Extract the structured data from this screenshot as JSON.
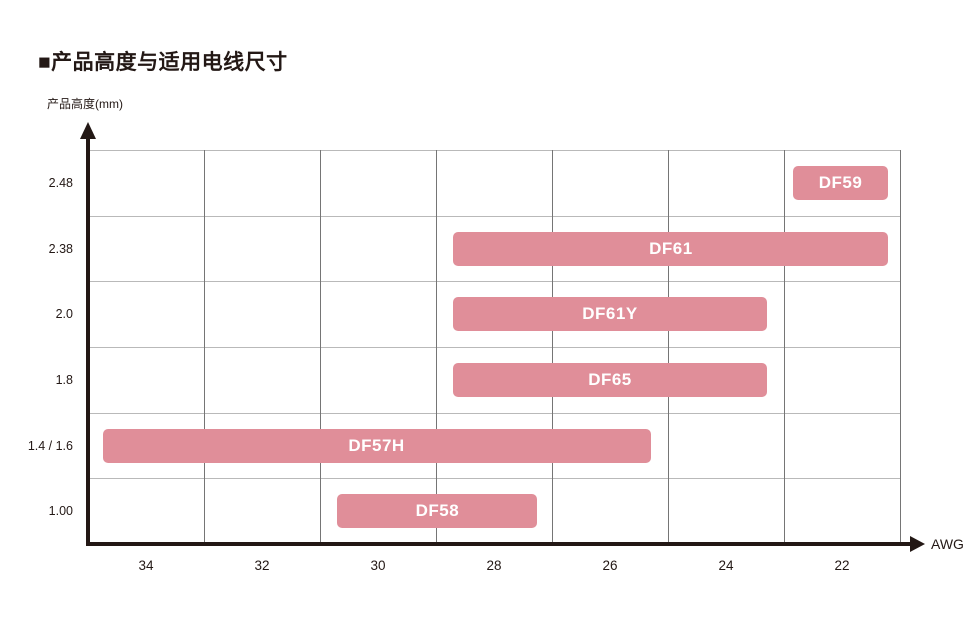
{
  "title": "■产品高度与适用电线尺寸",
  "y_axis_label": "产品高度(mm)",
  "x_axis_unit": "AWG",
  "colors": {
    "bar_fill": "#e08e99",
    "bar_text": "#ffffff",
    "axis": "#231815",
    "grid_horizontal": "#b9b9b9",
    "grid_vertical": "#757575"
  },
  "chart_data": {
    "type": "bar",
    "subtype": "horizontal-range-gantt",
    "title": "产品高度与适用电线尺寸",
    "xlabel": "AWG",
    "ylabel": "产品高度(mm)",
    "x_ticks": [
      "34",
      "32",
      "30",
      "28",
      "26",
      "24",
      "22"
    ],
    "x_range": [
      35,
      21
    ],
    "y_rows": [
      "2.48",
      "2.38",
      "2.0",
      "1.8",
      "1.4 / 1.6",
      "1.00"
    ],
    "grid": true,
    "series": [
      {
        "name": "DF59",
        "height_mm": "2.48",
        "row_index": 0,
        "awg_start": 22.85,
        "awg_end": 21.2
      },
      {
        "name": "DF61",
        "height_mm": "2.38",
        "row_index": 1,
        "awg_start": 28.7,
        "awg_end": 21.2
      },
      {
        "name": "DF61Y",
        "height_mm": "2.0",
        "row_index": 2,
        "awg_start": 28.7,
        "awg_end": 23.3
      },
      {
        "name": "DF65",
        "height_mm": "1.8",
        "row_index": 3,
        "awg_start": 28.7,
        "awg_end": 23.3
      },
      {
        "name": "DF57H",
        "height_mm": "1.4 / 1.6",
        "row_index": 4,
        "awg_start": 34.75,
        "awg_end": 25.3
      },
      {
        "name": "DF58",
        "height_mm": "1.00",
        "row_index": 5,
        "awg_start": 30.7,
        "awg_end": 27.25
      }
    ]
  }
}
